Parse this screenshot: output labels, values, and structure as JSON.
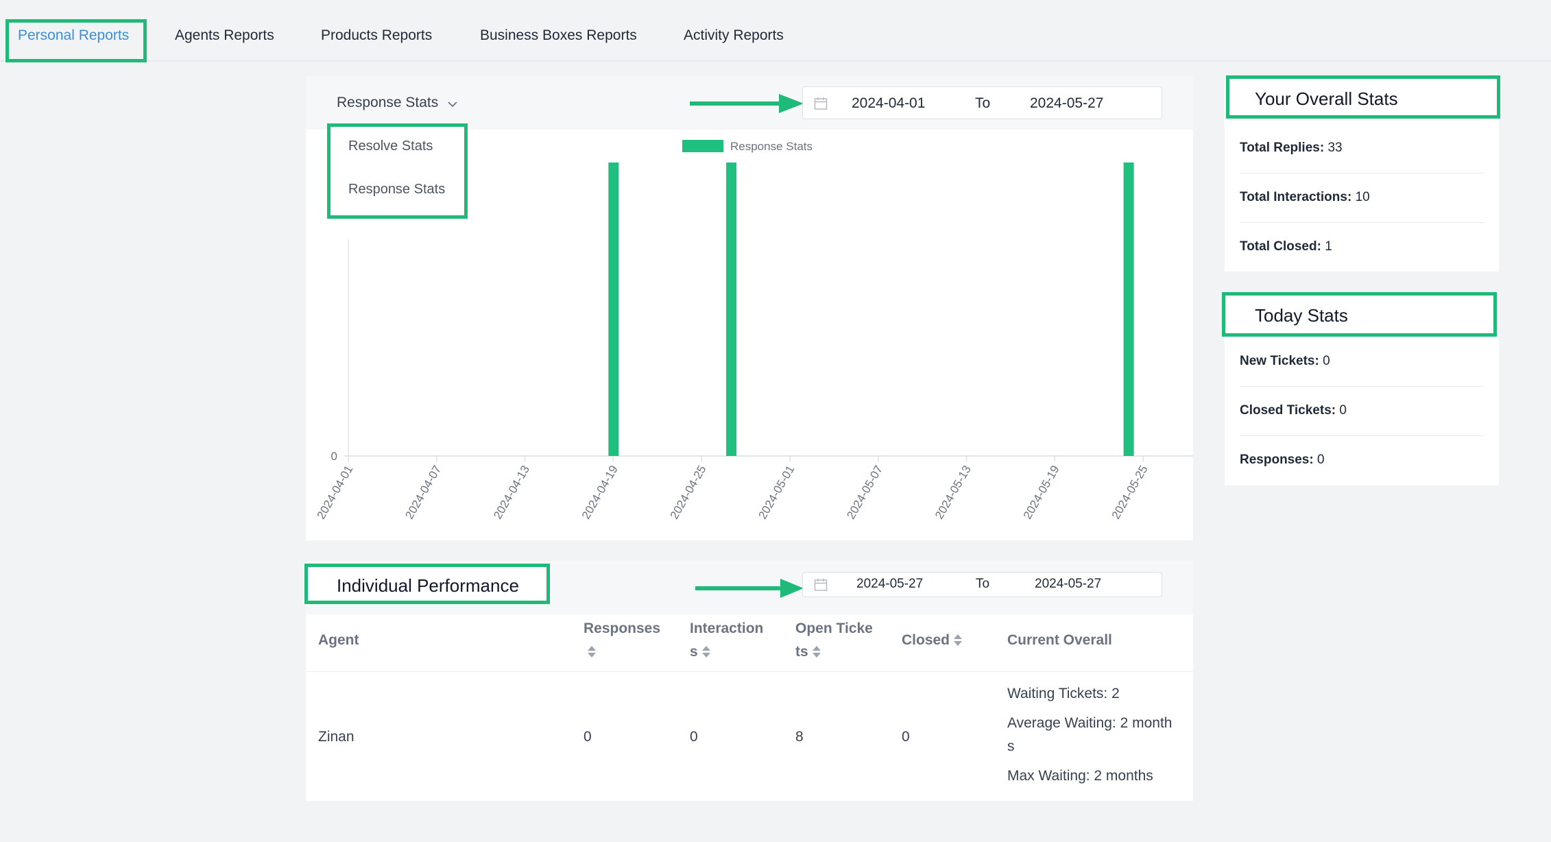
{
  "tabs": [
    {
      "label": "Personal Reports",
      "active": true
    },
    {
      "label": "Agents Reports",
      "active": false
    },
    {
      "label": "Products Reports",
      "active": false
    },
    {
      "label": "Business Boxes Reports",
      "active": false
    },
    {
      "label": "Activity Reports",
      "active": false
    }
  ],
  "stats_panel": {
    "selected": "Response Stats",
    "options": [
      "Resolve Stats",
      "Response Stats"
    ],
    "date_from": "2024-04-01",
    "date_to_label": "To",
    "date_to": "2024-05-27"
  },
  "chart_data": {
    "type": "bar",
    "legend": [
      "Response Stats"
    ],
    "series": [
      {
        "name": "Response Stats",
        "color": "#1fbf7f",
        "dates": [
          "2024-04-19",
          "2024-04-27",
          "2024-05-24"
        ],
        "values": [
          1,
          1,
          1
        ]
      }
    ],
    "x_ticks": [
      "2024-04-01",
      "2024-04-07",
      "2024-04-13",
      "2024-04-19",
      "2024-04-25",
      "2024-05-01",
      "2024-05-07",
      "2024-05-13",
      "2024-05-19",
      "2024-05-25"
    ],
    "y_ticks": [
      "0"
    ],
    "xlim": [
      "2024-04-01",
      "2024-05-27"
    ],
    "ylim": [
      0,
      1
    ]
  },
  "overall": {
    "title": "Your Overall Stats",
    "rows": [
      {
        "label": "Total Replies:",
        "value": "33"
      },
      {
        "label": "Total Interactions:",
        "value": "10"
      },
      {
        "label": "Total Closed:",
        "value": "1"
      }
    ]
  },
  "today": {
    "title": "Today Stats",
    "rows": [
      {
        "label": "New Tickets:",
        "value": "0"
      },
      {
        "label": "Closed Tickets:",
        "value": "0"
      },
      {
        "label": "Responses:",
        "value": "0"
      }
    ]
  },
  "performance": {
    "title": "Individual Performance",
    "date_from": "2024-05-27",
    "date_to_label": "To",
    "date_to": "2024-05-27",
    "columns": {
      "agent": "Agent",
      "responses": "Responses",
      "interactions_1": "Interaction",
      "interactions_2": "s",
      "open_1": "Open Ticke",
      "open_2": "ts",
      "closed": "Closed",
      "current": "Current Overall"
    },
    "rows": [
      {
        "agent": "Zinan",
        "responses": "0",
        "interactions": "0",
        "open": "8",
        "closed": "0",
        "waiting": "Waiting Tickets: 2",
        "avg_1": "Average Waiting: 2 month",
        "avg_2": "s",
        "max": "Max Waiting: 2 months"
      }
    ]
  },
  "colors": {
    "accent": "#1fb97a",
    "active_tab": "#3b8fd9",
    "bar": "#1fbf7f"
  }
}
